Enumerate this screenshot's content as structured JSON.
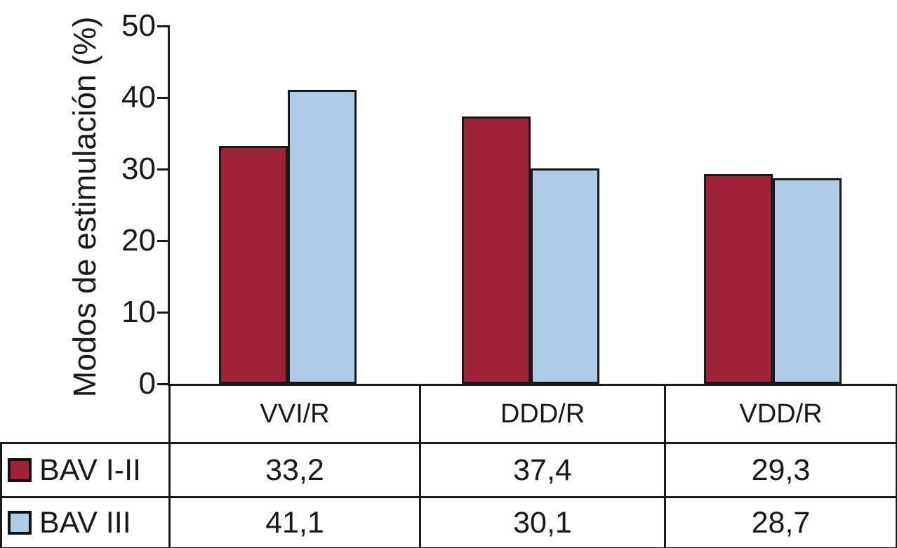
{
  "chart_data": {
    "type": "bar",
    "title": "",
    "ylabel": "Modos de estimulación (%)",
    "xlabel": "",
    "categories": [
      "VVI/R",
      "DDD/R",
      "VDD/R"
    ],
    "series": [
      {
        "name": "BAV I-II",
        "color": "#9f2239",
        "values": [
          33.2,
          37.4,
          29.3
        ],
        "labels": [
          "33,2",
          "37,4",
          "29,3"
        ]
      },
      {
        "name": "BAV III",
        "color": "#aecbe8",
        "values": [
          41.1,
          30.1,
          28.7
        ],
        "labels": [
          "41,1",
          "30,1",
          "28,7"
        ]
      }
    ],
    "ylim": [
      0,
      50
    ],
    "yticks": [
      0,
      10,
      20,
      30,
      40,
      50
    ],
    "ytick_labels": [
      "0",
      "10",
      "20",
      "30",
      "40",
      "50"
    ],
    "grid": false,
    "legend_position": "table-left",
    "axis_color": "#1a1a1a",
    "bar_outline_color": "#1a1a1a"
  }
}
